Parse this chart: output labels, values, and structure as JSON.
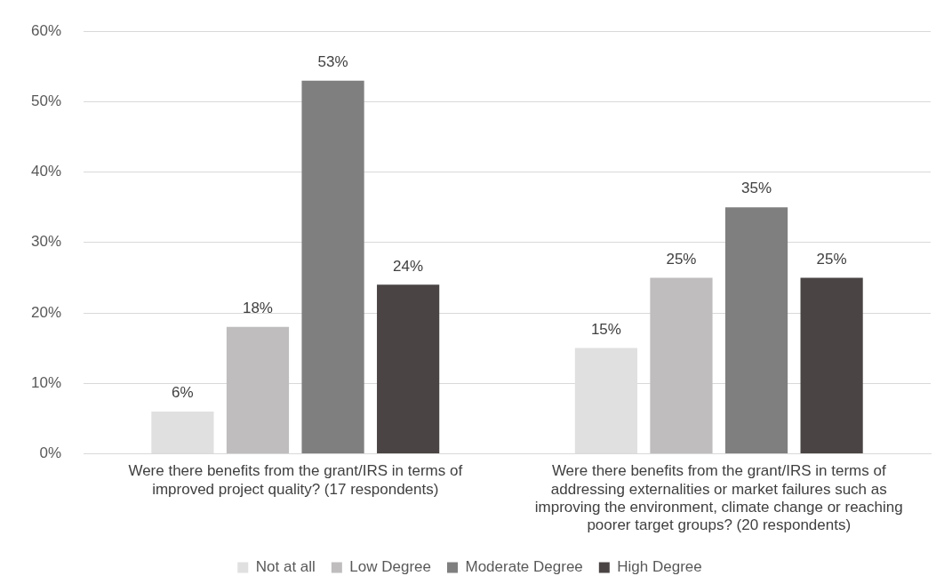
{
  "chart_data": {
    "type": "bar",
    "categories": [
      "Were there benefits from the grant/IRS in terms of improved project quality? (17 respondents)",
      "Were there benefits from the grant/IRS in terms of addressing externalities or market failures such as improving the environment, climate change or reaching poorer target groups? (20 respondents)"
    ],
    "series": [
      {
        "name": "Not at all",
        "color": "#e0e0e0",
        "values": [
          6,
          15
        ],
        "value_labels": [
          "6%",
          "15%"
        ]
      },
      {
        "name": "Low Degree",
        "color": "#bfbdbd",
        "values": [
          18,
          25
        ],
        "value_labels": [
          "18%",
          "25%"
        ]
      },
      {
        "name": "Moderate Degree",
        "color": "#7f7f7f",
        "values": [
          53,
          35
        ],
        "value_labels": [
          "53%",
          "35%"
        ]
      },
      {
        "name": "High Degree",
        "color": "#4a4544",
        "values": [
          24,
          25
        ],
        "value_labels": [
          "24%",
          "25%"
        ]
      }
    ],
    "ylim": [
      0,
      60
    ],
    "yticks": [
      {
        "value": 0,
        "label": "0%"
      },
      {
        "value": 10,
        "label": "10%"
      },
      {
        "value": 20,
        "label": "20%"
      },
      {
        "value": 30,
        "label": "30%"
      },
      {
        "value": 40,
        "label": "40%"
      },
      {
        "value": 50,
        "label": "50%"
      },
      {
        "value": 60,
        "label": "60%"
      }
    ],
    "grid": "y",
    "legend": "bottom"
  }
}
